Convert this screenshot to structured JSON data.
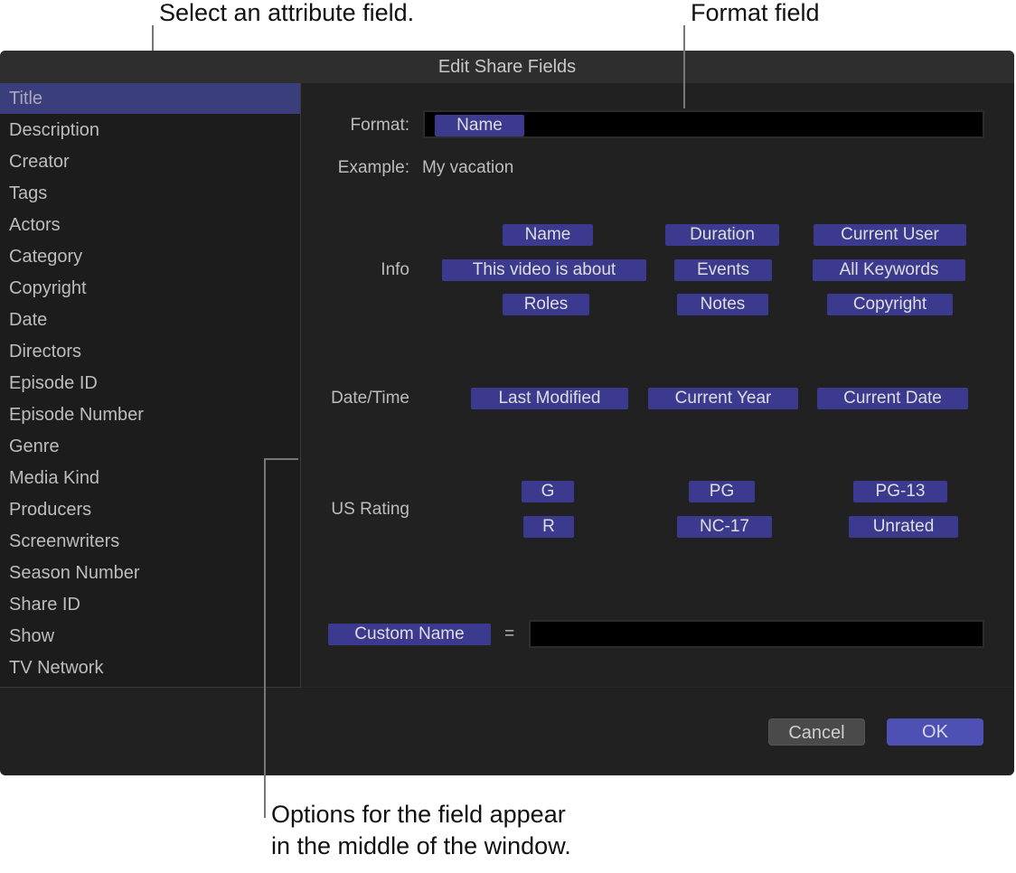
{
  "annotations": {
    "select_attribute": "Select an attribute field.",
    "format_field": "Format field",
    "options_line1": "Options for the field appear",
    "options_line2": "in the middle of the window."
  },
  "window": {
    "title": "Edit Share Fields"
  },
  "sidebar": {
    "items": [
      "Title",
      "Description",
      "Creator",
      "Tags",
      "Actors",
      "Category",
      "Copyright",
      "Date",
      "Directors",
      "Episode ID",
      "Episode Number",
      "Genre",
      "Media Kind",
      "Producers",
      "Screenwriters",
      "Season Number",
      "Share ID",
      "Show",
      "TV Network"
    ],
    "selected": "Title"
  },
  "format": {
    "label": "Format:",
    "tokens": [
      "Name"
    ]
  },
  "example": {
    "label": "Example:",
    "value": "My vacation"
  },
  "info": {
    "label": "Info",
    "tokens": [
      "Name",
      "Duration",
      "Current User",
      "This video is about",
      "Events",
      "All Keywords",
      "Roles",
      "Notes",
      "Copyright"
    ]
  },
  "datetime": {
    "label": "Date/Time",
    "tokens": [
      "Last Modified",
      "Current Year",
      "Current Date"
    ]
  },
  "rating": {
    "label": "US Rating",
    "tokens": [
      "G",
      "PG",
      "PG-13",
      "R",
      "NC-17",
      "Unrated"
    ]
  },
  "custom": {
    "token": "Custom Name",
    "equals": "=",
    "value": ""
  },
  "buttons": {
    "cancel": "Cancel",
    "ok": "OK"
  },
  "colors": {
    "token": "#3b3a8e",
    "selection": "#3a3e7c",
    "ok": "#4f50b4",
    "window": "#212121"
  }
}
